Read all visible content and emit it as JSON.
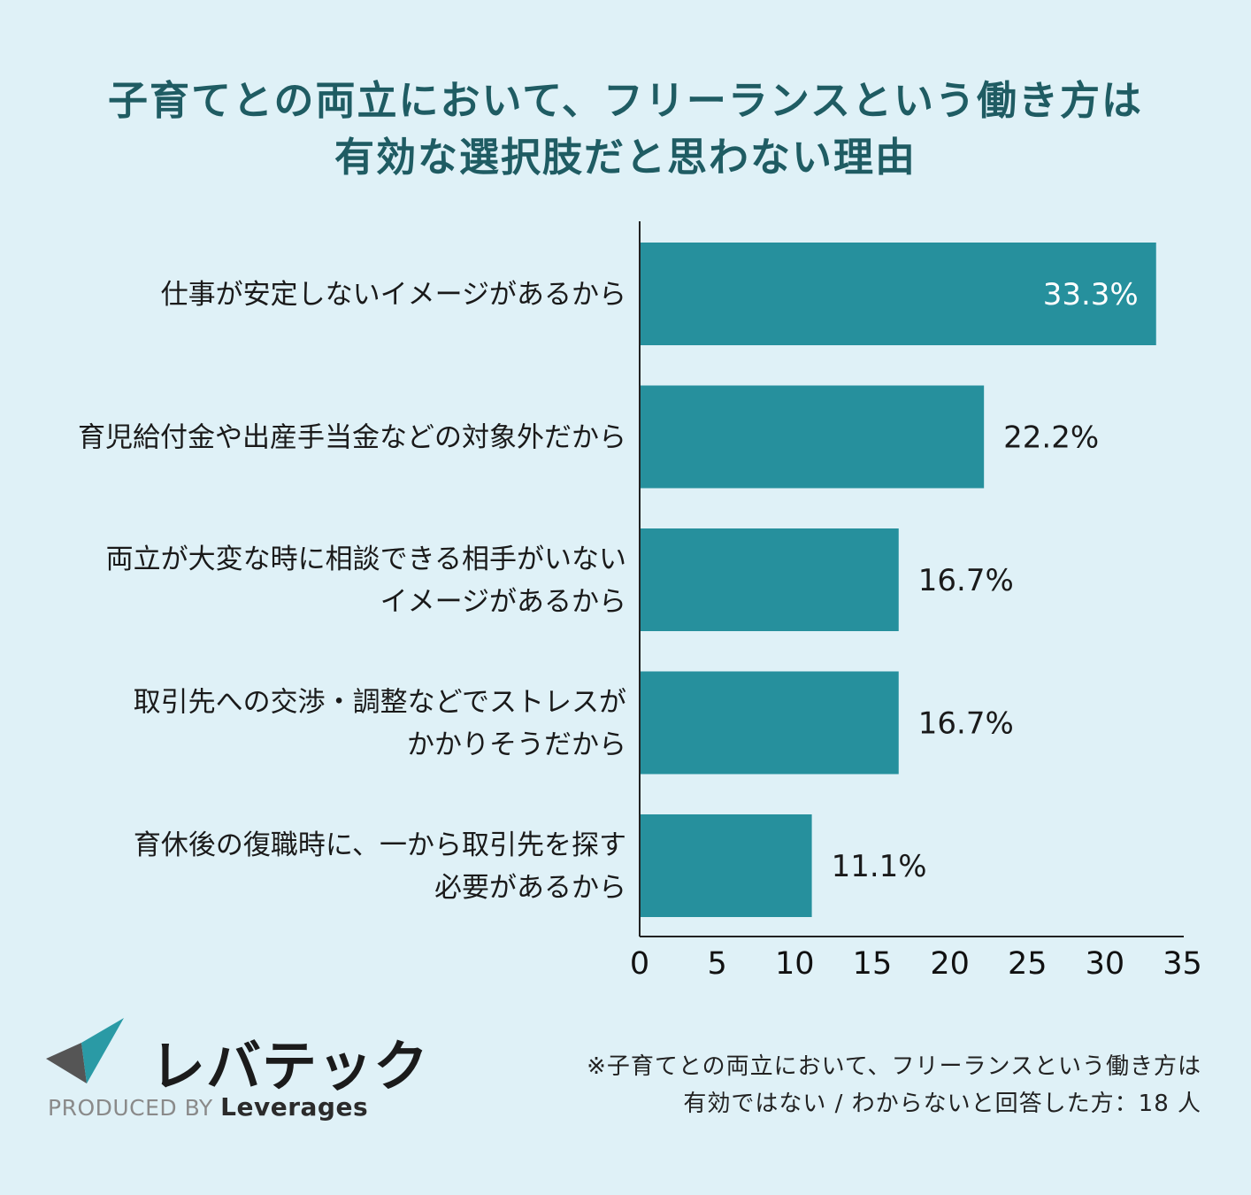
{
  "title": {
    "line1": "子育てとの両立において、フリーランスという働き方は",
    "line2": "有効な選択肢だと思わない理由"
  },
  "chart_data": {
    "type": "bar",
    "orientation": "horizontal",
    "categories": [
      [
        "仕事が安定しないイメージがあるから"
      ],
      [
        "育児給付金や出産手当金などの対象外だから"
      ],
      [
        "両立が大変な時に相談できる相手がいない",
        "イメージがあるから"
      ],
      [
        "取引先への交渉・調整などでストレスが",
        "かかりそうだから"
      ],
      [
        "育休後の復職時に、一から取引先を探す",
        "必要があるから"
      ]
    ],
    "values": [
      33.3,
      22.2,
      16.7,
      16.7,
      11.1
    ],
    "value_labels": [
      "33.3%",
      "22.2%",
      "16.7%",
      "16.7%",
      "11.1%"
    ],
    "xlim": [
      0,
      35
    ],
    "xticks": [
      "0",
      "5",
      "10",
      "15",
      "20",
      "25",
      "30",
      "35"
    ],
    "grid": false,
    "colors": {
      "bar": "#26909d",
      "label_inside": "#ffffff",
      "label_outside": "#1a1a1a",
      "axis": "#222222"
    }
  },
  "logo": {
    "text": "レバテック",
    "produced_by": "PRODUCED BY",
    "brand": "Leverages"
  },
  "footnote": {
    "line1": "※子育てとの両立において、フリーランスという働き方は",
    "line2": "有効ではない / わからないと回答した方：18 人"
  }
}
